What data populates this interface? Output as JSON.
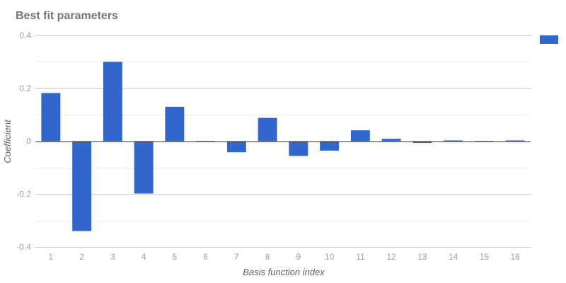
{
  "chart_data": {
    "type": "bar",
    "title": "Best fit parameters",
    "xlabel": "Basis function index",
    "ylabel": "Coefficient",
    "categories": [
      "1",
      "2",
      "3",
      "4",
      "5",
      "6",
      "7",
      "8",
      "9",
      "10",
      "11",
      "12",
      "13",
      "14",
      "15",
      "16"
    ],
    "series": [
      {
        "values": [
          0.182,
          -0.34,
          0.3,
          -0.198,
          0.13,
          0.0,
          -0.042,
          0.088,
          -0.056,
          -0.036,
          0.041,
          0.009,
          -0.007,
          0.003,
          0.0,
          0.003
        ],
        "color": "#3366cc"
      }
    ],
    "ylim": [
      -0.4,
      0.4
    ],
    "yticks": [
      "0.4",
      "0.2",
      "0",
      "-0.2",
      "-0.4"
    ],
    "ytick_values": [
      0.4,
      0.2,
      0,
      -0.2,
      -0.4
    ],
    "minor_grid_values": [
      0.3,
      0.1,
      -0.1,
      -0.3
    ],
    "grid": true,
    "legend": {
      "position": "right",
      "entries": [
        ""
      ]
    }
  }
}
